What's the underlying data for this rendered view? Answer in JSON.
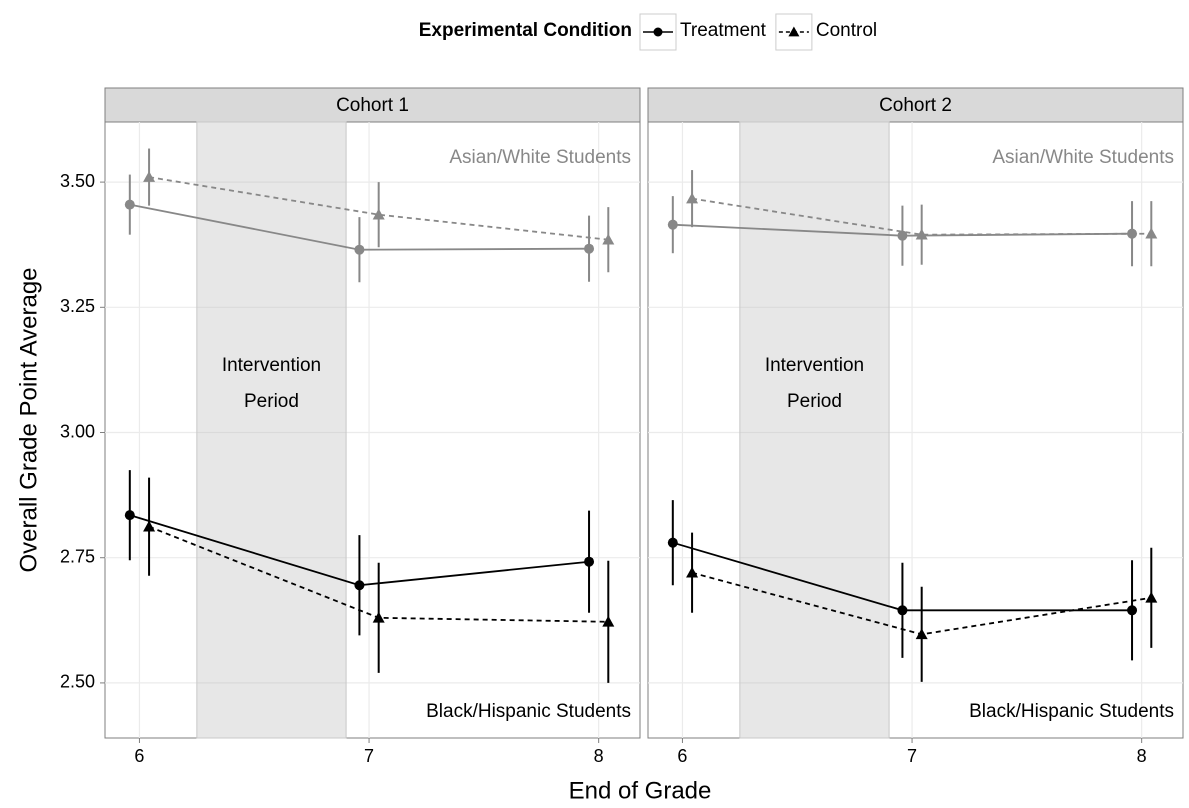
{
  "chart_data": {
    "type": "line",
    "legend_title": "Experimental Condition",
    "x_label": "End of Grade",
    "y_label": "Overall Grade Point Average",
    "x": [
      6,
      7,
      8
    ],
    "xlim": [
      5.85,
      8.18
    ],
    "xticks": [
      6,
      7,
      8
    ],
    "ylim": [
      2.39,
      3.62
    ],
    "yticks": [
      {
        "value": 2.5,
        "label": "2.50"
      },
      2.75,
      {
        "value": 3,
        "label": "3.00"
      },
      3.25,
      {
        "value": 3.5,
        "label": "3.50"
      }
    ],
    "grid": true,
    "band": {
      "label": [
        "Intervention",
        "Period"
      ],
      "x": [
        6.25,
        6.9
      ]
    },
    "panels": [
      {
        "title": "Cohort 1",
        "groups": [
          {
            "label": "Asian/White Students",
            "color": "#888888",
            "series": [
              {
                "name": "Treatment",
                "dash": false,
                "marker": "circle",
                "values": [
                  3.455,
                  3.365,
                  3.367
                ],
                "errors": [
                  0.06,
                  0.065,
                  0.066
                ]
              },
              {
                "name": "Control",
                "dash": true,
                "marker": "triangle",
                "values": [
                  3.51,
                  3.435,
                  3.385
                ],
                "errors": [
                  0.057,
                  0.065,
                  0.065
                ]
              }
            ]
          },
          {
            "label": "Black/Hispanic Students",
            "color": "#000000",
            "series": [
              {
                "name": "Treatment",
                "dash": false,
                "marker": "circle",
                "values": [
                  2.835,
                  2.695,
                  2.742
                ],
                "errors": [
                  0.09,
                  0.1,
                  0.102
                ]
              },
              {
                "name": "Control",
                "dash": true,
                "marker": "triangle",
                "values": [
                  2.812,
                  2.63,
                  2.622
                ],
                "errors": [
                  0.098,
                  0.11,
                  0.122
                ]
              }
            ]
          }
        ]
      },
      {
        "title": "Cohort 2",
        "groups": [
          {
            "label": "Asian/White Students",
            "color": "#888888",
            "series": [
              {
                "name": "Treatment",
                "dash": false,
                "marker": "circle",
                "values": [
                  3.415,
                  3.393,
                  3.397
                ],
                "errors": [
                  0.057,
                  0.06,
                  0.065
                ]
              },
              {
                "name": "Control",
                "dash": true,
                "marker": "triangle",
                "values": [
                  3.467,
                  3.395,
                  3.397
                ],
                "errors": [
                  0.057,
                  0.06,
                  0.065
                ]
              }
            ]
          },
          {
            "label": "Black/Hispanic Students",
            "color": "#000000",
            "series": [
              {
                "name": "Treatment",
                "dash": false,
                "marker": "circle",
                "values": [
                  2.78,
                  2.645,
                  2.645
                ],
                "errors": [
                  0.085,
                  0.095,
                  0.1
                ]
              },
              {
                "name": "Control",
                "dash": true,
                "marker": "triangle",
                "values": [
                  2.72,
                  2.597,
                  2.67
                ],
                "errors": [
                  0.08,
                  0.095,
                  0.1
                ]
              }
            ]
          }
        ]
      }
    ]
  }
}
